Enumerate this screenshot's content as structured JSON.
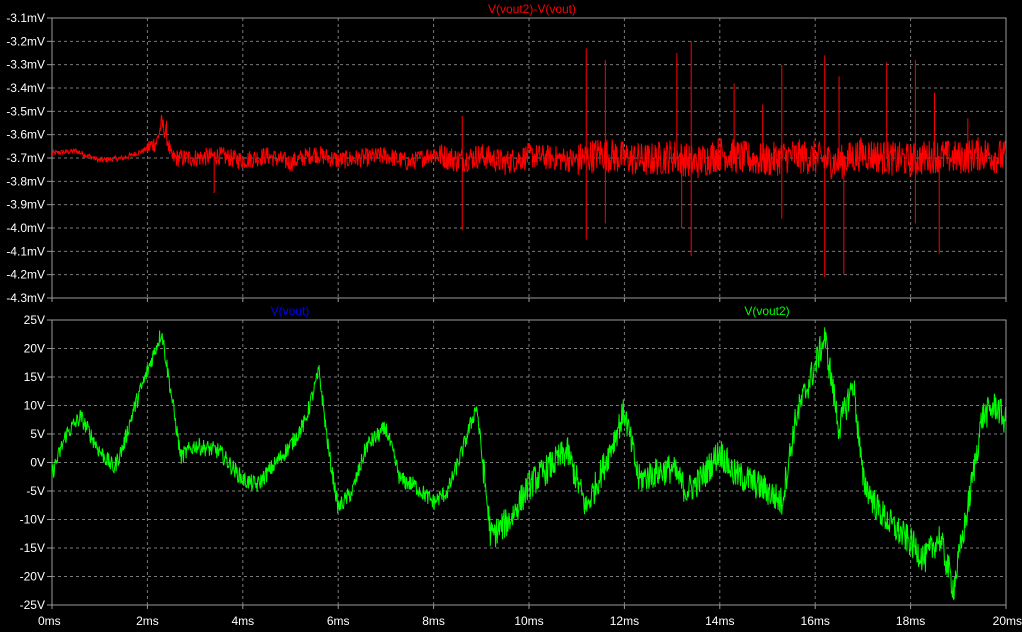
{
  "window": {
    "background": "#000000",
    "grid_color": "#7a7a7a",
    "frame_color": "#9a9a9a",
    "text_color": "#ffffff"
  },
  "chart_data": [
    {
      "type": "line",
      "title": "V(vout2)-V(vout)",
      "xlabel": "",
      "ylabel": "",
      "xlim": [
        0,
        20
      ],
      "ylim": [
        -4.3,
        -3.1
      ],
      "x_tick_labels": [
        "0ms",
        "2ms",
        "4ms",
        "6ms",
        "8ms",
        "10ms",
        "12ms",
        "14ms",
        "16ms",
        "18ms",
        "20ms"
      ],
      "y_ticks": [
        -3.1,
        -3.2,
        -3.3,
        -3.4,
        -3.5,
        -3.6,
        -3.7,
        -3.8,
        -3.9,
        -4.0,
        -4.1,
        -4.2,
        -4.3
      ],
      "y_tick_labels": [
        "-3.1mV",
        "-3.2mV",
        "-3.3mV",
        "-3.4mV",
        "-3.5mV",
        "-3.6mV",
        "-3.7mV",
        "-3.8mV",
        "-3.9mV",
        "-4.0mV",
        "-4.1mV",
        "-4.2mV",
        "-4.3mV"
      ],
      "grid": true,
      "series": [
        {
          "name": "V(vout2)-V(vout)",
          "color": "#ff0000",
          "x": [
            0,
            0.5,
            1,
            1.5,
            1.9,
            2.2,
            2.3,
            2.4,
            2.5,
            3,
            3.5,
            4,
            4.5,
            5,
            5.5,
            6,
            6.5,
            7,
            7.5,
            8,
            8.5,
            9,
            9.5,
            10,
            10.5,
            11,
            11.5,
            12,
            12.5,
            13,
            13.5,
            14,
            14.5,
            15,
            15.5,
            16,
            16.5,
            17,
            17.5,
            18,
            18.5,
            19,
            19.5,
            20
          ],
          "y": [
            -3.68,
            -3.67,
            -3.71,
            -3.7,
            -3.67,
            -3.63,
            -3.55,
            -3.6,
            -3.7,
            -3.7,
            -3.69,
            -3.71,
            -3.69,
            -3.72,
            -3.68,
            -3.71,
            -3.7,
            -3.69,
            -3.72,
            -3.68,
            -3.71,
            -3.69,
            -3.72,
            -3.69,
            -3.7,
            -3.71,
            -3.68,
            -3.7,
            -3.71,
            -3.69,
            -3.72,
            -3.68,
            -3.7,
            -3.71,
            -3.69,
            -3.7,
            -3.72,
            -3.68,
            -3.7,
            -3.71,
            -3.69,
            -3.7,
            -3.68,
            -3.7
          ],
          "spikes": [
            {
              "x": 2.4,
              "y": -3.54
            },
            {
              "x": 3.4,
              "y": -3.85
            },
            {
              "x": 8.6,
              "y": -3.52
            },
            {
              "x": 8.6,
              "y": -4.01
            },
            {
              "x": 11.2,
              "y": -3.23
            },
            {
              "x": 11.2,
              "y": -4.05
            },
            {
              "x": 11.6,
              "y": -3.28
            },
            {
              "x": 11.6,
              "y": -3.98
            },
            {
              "x": 13.1,
              "y": -3.25
            },
            {
              "x": 13.2,
              "y": -4.0
            },
            {
              "x": 13.4,
              "y": -3.2
            },
            {
              "x": 13.4,
              "y": -4.12
            },
            {
              "x": 14.3,
              "y": -3.38
            },
            {
              "x": 14.9,
              "y": -3.47
            },
            {
              "x": 15.3,
              "y": -3.3
            },
            {
              "x": 15.3,
              "y": -3.96
            },
            {
              "x": 16.2,
              "y": -3.26
            },
            {
              "x": 16.2,
              "y": -4.21
            },
            {
              "x": 16.5,
              "y": -3.35
            },
            {
              "x": 16.6,
              "y": -4.2
            },
            {
              "x": 17.5,
              "y": -3.29
            },
            {
              "x": 18.1,
              "y": -3.28
            },
            {
              "x": 18.1,
              "y": -3.98
            },
            {
              "x": 18.5,
              "y": -3.42
            },
            {
              "x": 18.6,
              "y": -4.11
            },
            {
              "x": 19.2,
              "y": -3.53
            }
          ]
        }
      ]
    },
    {
      "type": "line",
      "title": "",
      "xlabel": "",
      "ylabel": "",
      "xlim": [
        0,
        20
      ],
      "ylim": [
        -25,
        25
      ],
      "x_tick_labels": [
        "0ms",
        "2ms",
        "4ms",
        "6ms",
        "8ms",
        "10ms",
        "12ms",
        "14ms",
        "16ms",
        "18ms",
        "20ms"
      ],
      "y_ticks": [
        25,
        20,
        15,
        10,
        5,
        0,
        -5,
        -10,
        -15,
        -20,
        -25
      ],
      "y_tick_labels": [
        "25V",
        "20V",
        "15V",
        "10V",
        "5V",
        "0V",
        "-5V",
        "-10V",
        "-15V",
        "-20V",
        "-25V"
      ],
      "grid": true,
      "legend": "top",
      "series": [
        {
          "name": "V(vout)",
          "color": "#0000ff",
          "note_hidden": true,
          "x": [],
          "y": []
        },
        {
          "name": "V(vout2)",
          "color": "#00ff00",
          "x": [
            0,
            0.3,
            0.6,
            0.8,
            1.0,
            1.3,
            1.5,
            1.7,
            2.0,
            2.3,
            2.5,
            2.7,
            3.0,
            3.5,
            4.0,
            4.3,
            4.6,
            5.0,
            5.3,
            5.6,
            5.8,
            6.0,
            6.3,
            6.6,
            7.0,
            7.3,
            7.6,
            8.0,
            8.3,
            8.6,
            8.9,
            9.2,
            9.6,
            10.0,
            10.4,
            10.8,
            11.2,
            11.6,
            12.0,
            12.3,
            12.6,
            13.0,
            13.3,
            13.6,
            14.0,
            14.3,
            14.6,
            15.0,
            15.3,
            15.6,
            16.0,
            16.2,
            16.5,
            16.8,
            17.0,
            17.3,
            17.6,
            18.0,
            18.3,
            18.6,
            18.9,
            19.2,
            19.5,
            19.8,
            20.0
          ],
          "y": [
            -2,
            5,
            8,
            5,
            2,
            -1,
            3,
            9,
            16,
            23,
            12,
            1,
            3,
            2,
            -3,
            -4,
            -1,
            3,
            7,
            16,
            2,
            -8,
            -5,
            3,
            6,
            -3,
            -4,
            -7,
            -5,
            2,
            10,
            -13,
            -10,
            -4,
            -1,
            2,
            -8,
            0,
            9,
            -3,
            -2,
            -1,
            -5,
            -3,
            2,
            -2,
            -3,
            -5,
            -7,
            8,
            17,
            22,
            6,
            14,
            -3,
            -8,
            -11,
            -14,
            -17,
            -13,
            -22,
            -8,
            8,
            10,
            7
          ]
        }
      ]
    }
  ]
}
